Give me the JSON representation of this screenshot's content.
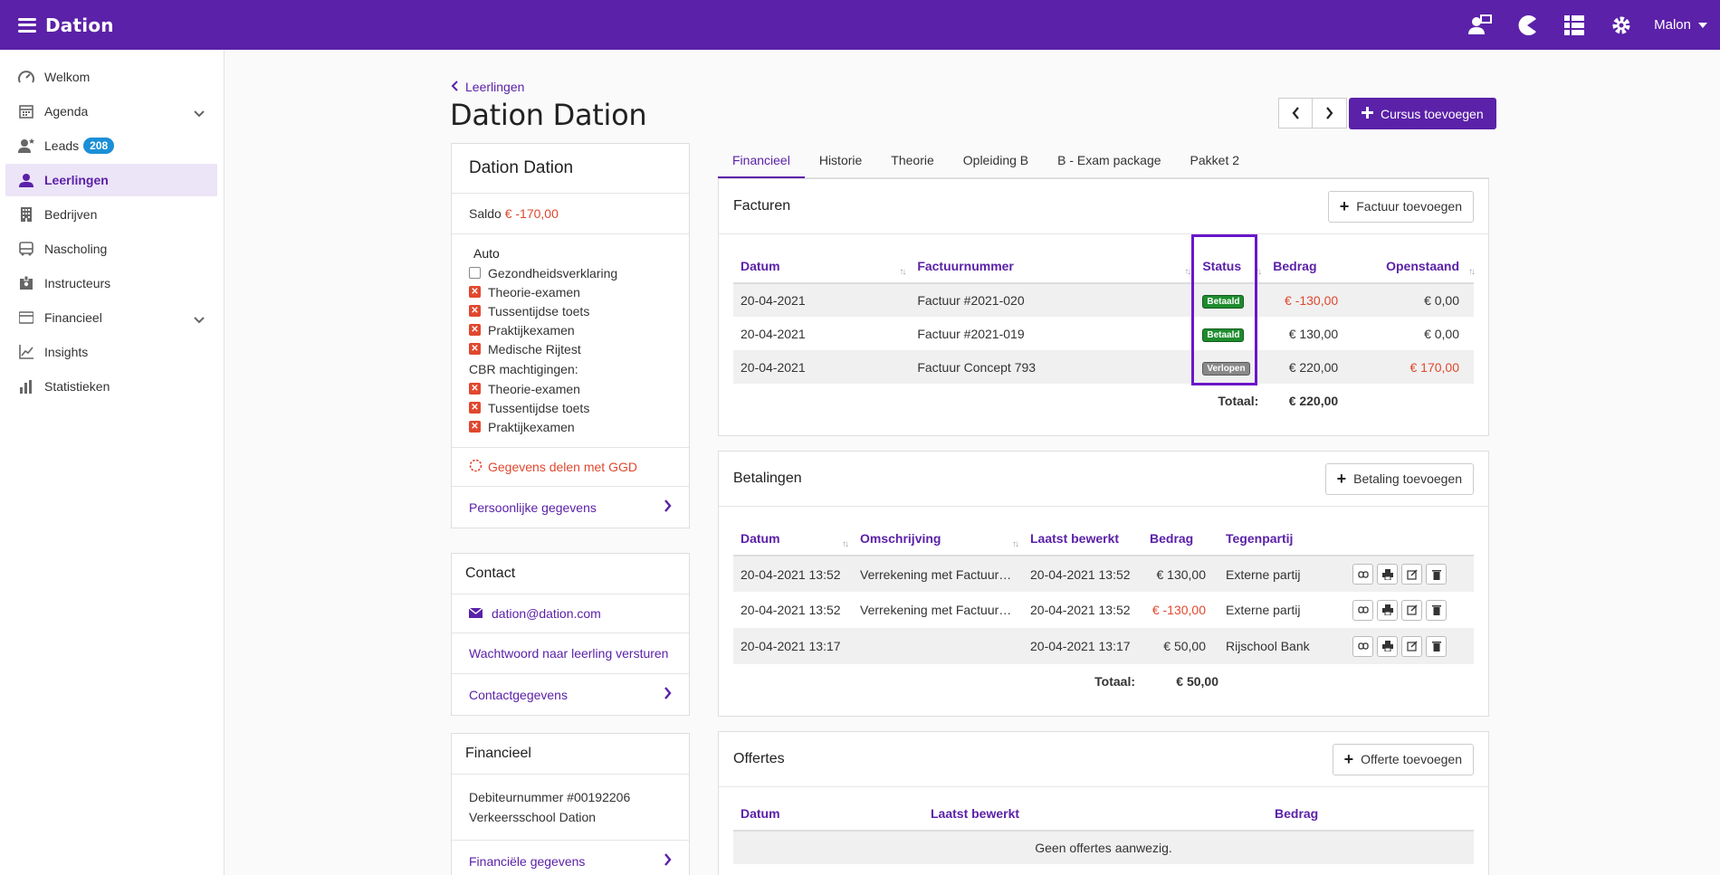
{
  "app": {
    "brand": "Dation",
    "user": "Malon"
  },
  "sidebar": {
    "items": [
      {
        "label": "Welkom",
        "icon": "speedometer-icon"
      },
      {
        "label": "Agenda",
        "icon": "calendar-icon"
      },
      {
        "label": "Leads",
        "icon": "user-star-icon",
        "badge": "208"
      },
      {
        "label": "Leerlingen",
        "icon": "user-icon"
      },
      {
        "label": "Bedrijven",
        "icon": "building-icon"
      },
      {
        "label": "Nascholing",
        "icon": "bus-icon"
      },
      {
        "label": "Instructeurs",
        "icon": "id-badge-icon"
      },
      {
        "label": "Financieel",
        "icon": "wallet-icon"
      },
      {
        "label": "Insights",
        "icon": "line-chart-icon"
      },
      {
        "label": "Statistieken",
        "icon": "bar-chart-icon"
      }
    ]
  },
  "header": {
    "back_label": "Leerlingen",
    "title": "Dation Dation",
    "add_course_label": "Cursus toevoegen"
  },
  "profile": {
    "name": "Dation Dation",
    "saldo_label": "Saldo",
    "saldo_value": "€ -170,00",
    "auto_heading": "Auto",
    "auto_items": [
      "Gezondheidsverklaring",
      "Theorie-examen",
      "Tussentijdse toets",
      "Praktijkexamen",
      "Medische Rijtest"
    ],
    "cbr_heading": "CBR machtigingen:",
    "cbr_items": [
      "Theorie-examen",
      "Tussentijdse toets",
      "Praktijkexamen"
    ],
    "ggd_label": "Gegevens delen met GGD",
    "personal_label": "Persoonlijke gegevens"
  },
  "contact": {
    "heading": "Contact",
    "email": "dation@dation.com",
    "password_label": "Wachtwoord naar leerling versturen",
    "details_label": "Contactgegevens"
  },
  "financial": {
    "heading": "Financieel",
    "debtor": "Debiteurnummer #00192206",
    "school": "Verkeersschool Dation",
    "details_label": "Financiële gegevens"
  },
  "tabs": [
    "Financieel",
    "Historie",
    "Theorie",
    "Opleiding B",
    "B - Exam package",
    "Pakket 2"
  ],
  "invoices": {
    "title": "Facturen",
    "add_label": "Factuur toevoegen",
    "columns": [
      "Datum",
      "Factuurnummer",
      "Status",
      "Bedrag",
      "Openstaand"
    ],
    "rows": [
      {
        "date": "20-04-2021",
        "number": "Factuur #2021-020",
        "status": "Betaald",
        "amount": "€ -130,00",
        "open": "€ 0,00"
      },
      {
        "date": "20-04-2021",
        "number": "Factuur #2021-019",
        "status": "Betaald",
        "amount": "€ 130,00",
        "open": "€ 0,00"
      },
      {
        "date": "20-04-2021",
        "number": "Factuur Concept 793",
        "status": "Verlopen",
        "amount": "€ 220,00",
        "open": "€ 170,00"
      }
    ],
    "total_label": "Totaal:",
    "total_value": "€ 220,00"
  },
  "payments": {
    "title": "Betalingen",
    "add_label": "Betaling toevoegen",
    "columns": [
      "Datum",
      "Omschrijving",
      "Laatst bewerkt",
      "Bedrag",
      "Tegenpartij"
    ],
    "rows": [
      {
        "date": "20-04-2021 13:52",
        "desc": "Verrekening met Factuur…",
        "edited": "20-04-2021 13:52",
        "amount": "€ 130,00",
        "party": "Externe partij"
      },
      {
        "date": "20-04-2021 13:52",
        "desc": "Verrekening met Factuur…",
        "edited": "20-04-2021 13:52",
        "amount": "€ -130,00",
        "party": "Externe partij"
      },
      {
        "date": "20-04-2021 13:17",
        "desc": "",
        "edited": "20-04-2021 13:17",
        "amount": "€ 50,00",
        "party": "Rijschool Bank"
      }
    ],
    "total_label": "Totaal:",
    "total_value": "€ 50,00"
  },
  "quotes": {
    "title": "Offertes",
    "add_label": "Offerte toevoegen",
    "columns": [
      "Datum",
      "Laatst bewerkt",
      "Bedrag"
    ],
    "empty": "Geen offertes aanwezig."
  },
  "colors": {
    "brand": "#5b21a8",
    "negative": "#e0482f",
    "paid": "#1e8c2e",
    "expired": "#888888",
    "highlight": "#6a16c9"
  }
}
